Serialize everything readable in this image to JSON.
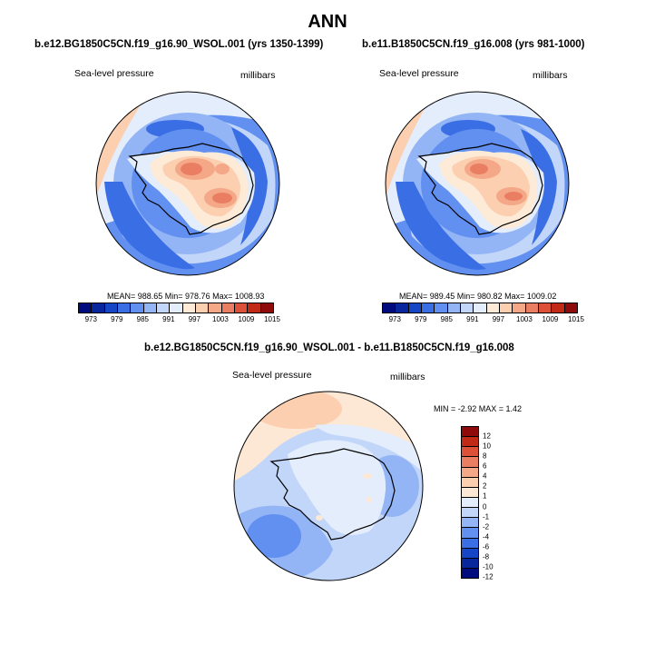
{
  "page": {
    "title": "ANN"
  },
  "colors": {
    "psl_levels": [
      "#000c7d",
      "#08279c",
      "#1546c5",
      "#3a6ee5",
      "#6190f0",
      "#93b5f6",
      "#c2d6f9",
      "#e3edfb",
      "#fdebd7",
      "#fbcfb0",
      "#f4a888",
      "#ea7e62",
      "#dc5137",
      "#c02a16",
      "#8f0a0a"
    ],
    "diff_levels": [
      "#000c7d",
      "#08279c",
      "#1546c5",
      "#3a6ee5",
      "#6190f0",
      "#93b5f6",
      "#c2d6f9",
      "#e3edfb",
      "#fde8d5",
      "#fbcfb0",
      "#f4a888",
      "#ea7e62",
      "#dc5137",
      "#c02a16",
      "#8f0a0a"
    ]
  },
  "panels": [
    {
      "title": "b.e12.BG1850C5CN.f19_g16.90_WSOL.001 (yrs 1350-1399)",
      "field": "Sea-level pressure",
      "units": "millibars",
      "stats": "MEAN= 988.65  Min= 978.76  Max= 1008.93",
      "ticks": [
        "973",
        "979",
        "985",
        "991",
        "997",
        "1003",
        "1009",
        "1015"
      ]
    },
    {
      "title": "b.e11.B1850C5CN.f19_g16.008 (yrs 981-1000)",
      "field": "Sea-level pressure",
      "units": "millibars",
      "stats": "MEAN= 989.45  Min= 980.82  Max= 1009.02",
      "ticks": [
        "973",
        "979",
        "985",
        "991",
        "997",
        "1003",
        "1009",
        "1015"
      ]
    }
  ],
  "difference": {
    "title": "b.e12.BG1850C5CN.f19_g16.90_WSOL.001 - b.e11.B1850C5CN.f19_g16.008",
    "field": "Sea-level pressure",
    "units": "millibars",
    "stats": "MIN =  -2.92 MAX =   1.42",
    "ticks": [
      "12",
      "10",
      "8",
      "6",
      "4",
      "2",
      "1",
      "0",
      "-1",
      "-2",
      "-4",
      "-6",
      "-8",
      "-10",
      "-12"
    ]
  }
}
